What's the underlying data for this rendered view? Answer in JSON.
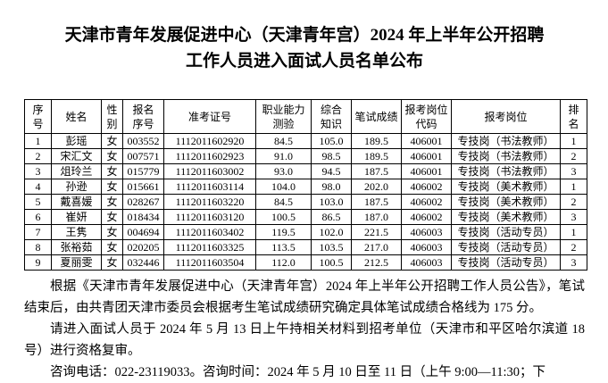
{
  "document": {
    "title_line1": "天津市青年发展促进中心（天津青年宫）2024 年上半年公开招聘",
    "title_line2": "工作人员进入面试人员名单公布",
    "table": {
      "columns": [
        "序\n号",
        "姓名",
        "性\n别",
        "报名\n序号",
        "准考证号",
        "职业能力\n测验",
        "综合\n知识",
        "笔试成绩",
        "报考岗位\n代码",
        "报考岗位",
        "排\n名"
      ],
      "rows": [
        [
          "1",
          "彭瑶",
          "女",
          "003552",
          "1112011602920",
          "84.5",
          "105.0",
          "189.5",
          "406001",
          "专技岗（书法教师）",
          "1"
        ],
        [
          "2",
          "宋汇文",
          "女",
          "007571",
          "1112011602923",
          "91.0",
          "98.5",
          "189.5",
          "406001",
          "专技岗（书法教师）",
          "2"
        ],
        [
          "3",
          "俎玲兰",
          "女",
          "015779",
          "1112011603002",
          "93.0",
          "94.5",
          "187.5",
          "406001",
          "专技岗（书法教师）",
          "3"
        ],
        [
          "4",
          "孙逊",
          "女",
          "015661",
          "1112011603114",
          "104.0",
          "98.0",
          "202.0",
          "406002",
          "专技岗（美术教师）",
          "1"
        ],
        [
          "5",
          "戴喜媛",
          "女",
          "028267",
          "1112011603220",
          "84.5",
          "103.0",
          "187.5",
          "406002",
          "专技岗（美术教师）",
          "2"
        ],
        [
          "6",
          "崔妍",
          "女",
          "018434",
          "1112011603120",
          "100.5",
          "86.5",
          "187.0",
          "406002",
          "专技岗（美术教师）",
          "3"
        ],
        [
          "7",
          "王隽",
          "女",
          "004694",
          "1112011603402",
          "119.5",
          "102.0",
          "221.5",
          "406003",
          "专技岗（活动专员）",
          "1"
        ],
        [
          "8",
          "张裕茹",
          "女",
          "020205",
          "1112011603325",
          "113.5",
          "103.5",
          "217.0",
          "406003",
          "专技岗（活动专员）",
          "2"
        ],
        [
          "9",
          "夏丽雯",
          "女",
          "032446",
          "1112011603504",
          "112.0",
          "100.5",
          "212.5",
          "406003",
          "专技岗（活动专员）",
          "3"
        ]
      ]
    },
    "paragraphs": [
      "根据《天津市青年发展促进中心（天津青年宫）2024 年上半年公开招聘工作人员公告》，笔试结束后，由共青团天津市委员会根据考生笔试成绩研究确定具体笔试成绩合格线为 175 分。",
      "请进入面试人员于 2024 年 5 月 13 日上午持相关材料到招考单位（天津市和平区哈尔滨道 18 号）进行资格复审。",
      "咨询电话：022-23119033。咨询时间：2024 年 5 月 10 日至 11 日（上午 9:00—11:30；下"
    ]
  }
}
